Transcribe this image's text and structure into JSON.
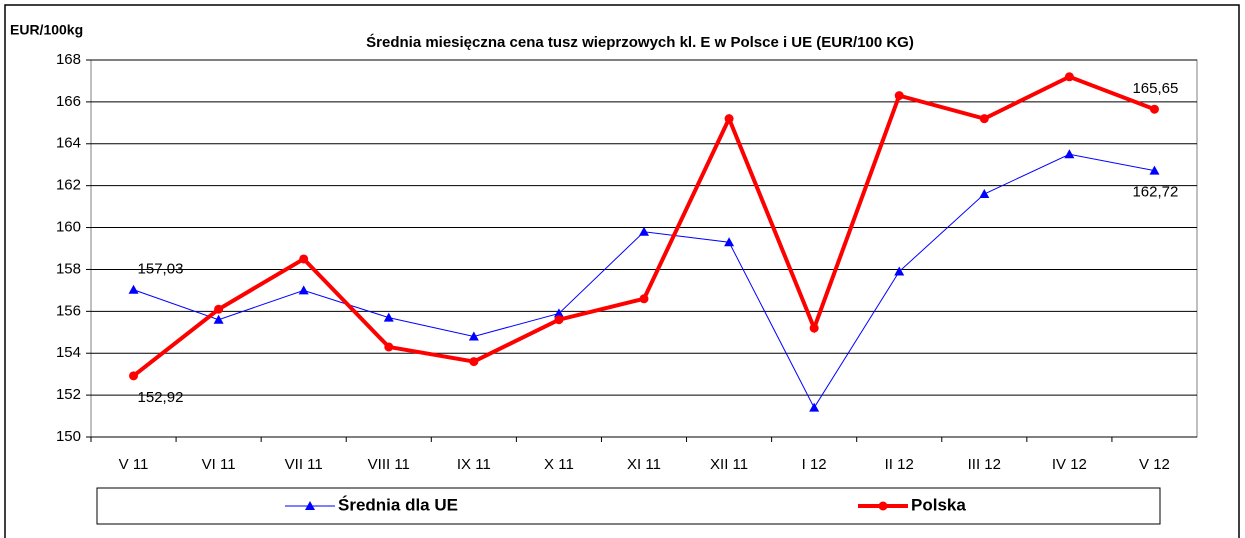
{
  "chart_data": {
    "type": "line",
    "title": "Średnia miesięczna cena tusz wieprzowych kl. E w  Polsce i UE (EUR/100 KG)",
    "y_label": "EUR/100kg",
    "categories": [
      "V 11",
      "VI 11",
      "VII 11",
      "VIII 11",
      "IX 11",
      "X 11",
      "XI 11",
      "XII 11",
      "I 12",
      "II 12",
      "III 12",
      "IV 12",
      "V 12"
    ],
    "series": [
      {
        "name": "Średnia dla  UE",
        "color": "#0000ff",
        "marker": "triangle",
        "values": [
          157.03,
          155.6,
          157.0,
          155.7,
          154.8,
          155.9,
          159.8,
          159.3,
          151.4,
          157.9,
          161.6,
          163.5,
          162.72
        ],
        "value_labels": [
          "157,03",
          null,
          null,
          null,
          null,
          null,
          null,
          null,
          null,
          null,
          null,
          null,
          "162,72"
        ]
      },
      {
        "name": "Polska",
        "color": "#ff0000",
        "marker": "circle",
        "values": [
          152.92,
          156.1,
          158.5,
          154.3,
          153.6,
          155.6,
          156.6,
          165.2,
          155.2,
          166.3,
          165.2,
          167.2,
          165.65
        ],
        "value_labels": [
          "152,92",
          null,
          null,
          null,
          null,
          null,
          null,
          null,
          null,
          null,
          null,
          null,
          "165,65"
        ]
      }
    ],
    "ylim": [
      150,
      168
    ],
    "yticks": [
      150,
      152,
      154,
      156,
      158,
      160,
      162,
      164,
      166,
      168
    ],
    "grid": true
  }
}
